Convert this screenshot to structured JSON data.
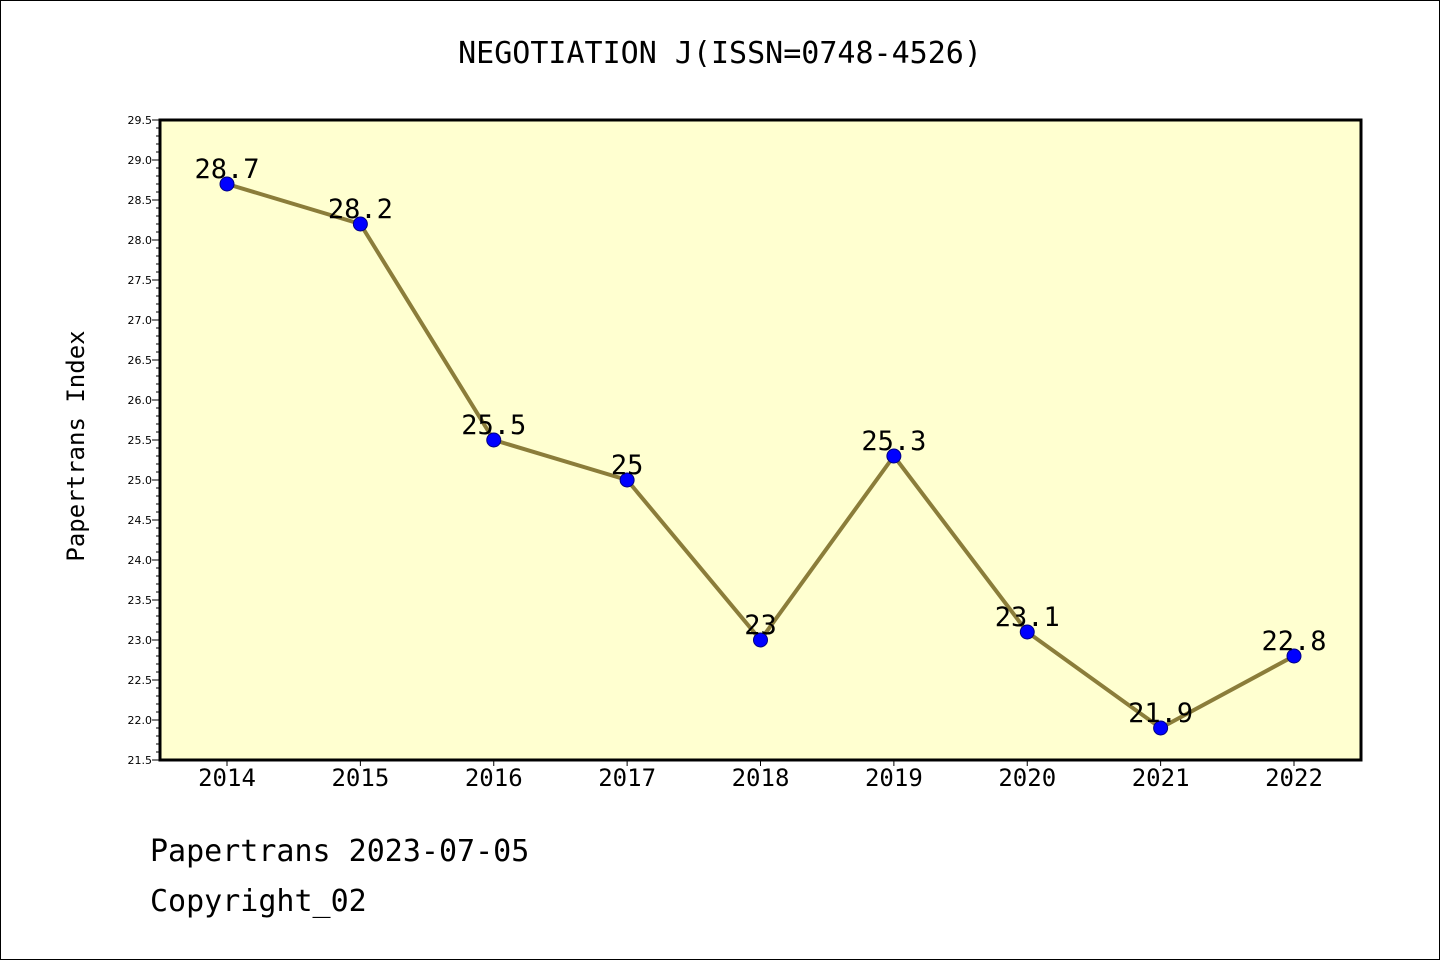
{
  "chart_data": {
    "type": "line",
    "title": "NEGOTIATION J(ISSN=0748-4526)",
    "ylabel": "Papertrans Index",
    "xlabel": "",
    "categories": [
      "2014",
      "2015",
      "2016",
      "2017",
      "2018",
      "2019",
      "2020",
      "2021",
      "2022"
    ],
    "series": [
      {
        "values": [
          28.7,
          28.2,
          25.5,
          25.0,
          23.0,
          25.3,
          23.1,
          21.9,
          22.8
        ],
        "labels": [
          "28.7",
          "28.2",
          "25.5",
          "25",
          "23",
          "25.3",
          "23.1",
          "21.9",
          "22.8"
        ]
      }
    ],
    "ylim": [
      21.5,
      29.5
    ],
    "yticks": [
      "21.5",
      "22.0",
      "22.5",
      "23.0",
      "23.5",
      "24.0",
      "24.5",
      "25.0",
      "25.5",
      "26.0",
      "26.5",
      "27.0",
      "27.5",
      "28.0",
      "28.5",
      "29.0",
      "29.5"
    ],
    "grid": false,
    "colors": {
      "plot_background": "#ffffd0",
      "line": "#8b7d3a",
      "marker": "#0000ff"
    }
  },
  "footer": {
    "date_line": "Papertrans 2023-07-05",
    "copyright": "Copyright_02"
  }
}
